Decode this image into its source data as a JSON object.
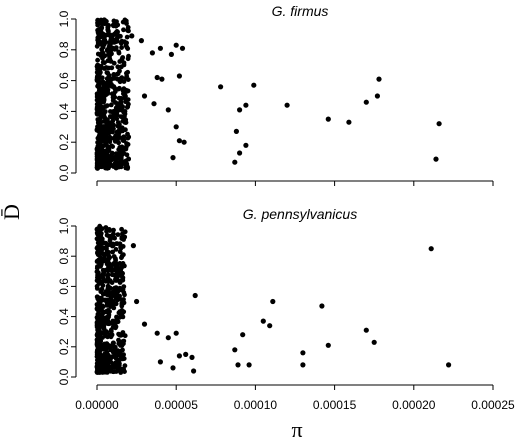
{
  "chart_data": [
    {
      "type": "scatter",
      "title": "G. firmus",
      "xlabel": "π",
      "ylabel": "D̄",
      "xlim": [
        0,
        0.00025
      ],
      "ylim": [
        0,
        1.0
      ],
      "y_ticks": [
        "0.0",
        "0.2",
        "0.4",
        "0.6",
        "0.8",
        "1.0"
      ],
      "labeled_points": [
        {
          "x": 8e-06,
          "y": 0.83
        },
        {
          "x": 2.2e-05,
          "y": 0.89
        },
        {
          "x": 2.8e-05,
          "y": 0.86
        },
        {
          "x": 3.5e-05,
          "y": 0.78
        },
        {
          "x": 4e-05,
          "y": 0.81
        },
        {
          "x": 4.7e-05,
          "y": 0.77
        },
        {
          "x": 5e-05,
          "y": 0.83
        },
        {
          "x": 5.4e-05,
          "y": 0.81
        },
        {
          "x": 3.8e-05,
          "y": 0.62
        },
        {
          "x": 4.1e-05,
          "y": 0.61
        },
        {
          "x": 5.2e-05,
          "y": 0.63
        },
        {
          "x": 3e-05,
          "y": 0.5
        },
        {
          "x": 3.6e-05,
          "y": 0.45
        },
        {
          "x": 4.5e-05,
          "y": 0.41
        },
        {
          "x": 5e-05,
          "y": 0.3
        },
        {
          "x": 5.2e-05,
          "y": 0.21
        },
        {
          "x": 5.5e-05,
          "y": 0.2
        },
        {
          "x": 4.8e-05,
          "y": 0.1
        },
        {
          "x": 7.8e-05,
          "y": 0.56
        },
        {
          "x": 8.8e-05,
          "y": 0.27
        },
        {
          "x": 8.7e-05,
          "y": 0.07
        },
        {
          "x": 9e-05,
          "y": 0.41
        },
        {
          "x": 9e-05,
          "y": 0.13
        },
        {
          "x": 9.4e-05,
          "y": 0.44
        },
        {
          "x": 9.4e-05,
          "y": 0.18
        },
        {
          "x": 9.9e-05,
          "y": 0.57
        },
        {
          "x": 0.00012,
          "y": 0.44
        },
        {
          "x": 0.000146,
          "y": 0.35
        },
        {
          "x": 0.000159,
          "y": 0.33
        },
        {
          "x": 0.00017,
          "y": 0.46
        },
        {
          "x": 0.000177,
          "y": 0.5
        },
        {
          "x": 0.000178,
          "y": 0.61
        },
        {
          "x": 0.000214,
          "y": 0.09
        },
        {
          "x": 0.000216,
          "y": 0.32
        }
      ],
      "dense_cluster": {
        "n": 620,
        "x_range": [
          0,
          2e-05
        ],
        "y_range": [
          0.03,
          1.0
        ],
        "seed": 11
      }
    },
    {
      "type": "scatter",
      "title": "G. pennsylvanicus",
      "xlabel": "π",
      "ylabel": "D̄",
      "xlim": [
        0,
        0.00025
      ],
      "ylim": [
        0,
        1.0
      ],
      "x_ticks": [
        "0.00000",
        "0.00005",
        "0.00010",
        "0.00015",
        "0.00020",
        "0.00025"
      ],
      "y_ticks": [
        "0.0",
        "0.2",
        "0.4",
        "0.6",
        "0.8",
        "1.0"
      ],
      "labeled_points": [
        {
          "x": 8e-06,
          "y": 0.93
        },
        {
          "x": 1.5e-05,
          "y": 0.86
        },
        {
          "x": 2.3e-05,
          "y": 0.87
        },
        {
          "x": 1.2e-05,
          "y": 0.72
        },
        {
          "x": 2.5e-05,
          "y": 0.5
        },
        {
          "x": 3e-05,
          "y": 0.35
        },
        {
          "x": 3.8e-05,
          "y": 0.29
        },
        {
          "x": 4.5e-05,
          "y": 0.26
        },
        {
          "x": 5e-05,
          "y": 0.29
        },
        {
          "x": 5.2e-05,
          "y": 0.14
        },
        {
          "x": 5.6e-05,
          "y": 0.15
        },
        {
          "x": 6e-05,
          "y": 0.13
        },
        {
          "x": 6.2e-05,
          "y": 0.54
        },
        {
          "x": 6.1e-05,
          "y": 0.04
        },
        {
          "x": 4.8e-05,
          "y": 0.06
        },
        {
          "x": 4e-05,
          "y": 0.1
        },
        {
          "x": 8.7e-05,
          "y": 0.18
        },
        {
          "x": 8.9e-05,
          "y": 0.08
        },
        {
          "x": 9.2e-05,
          "y": 0.28
        },
        {
          "x": 9.6e-05,
          "y": 0.08
        },
        {
          "x": 0.000105,
          "y": 0.37
        },
        {
          "x": 0.000109,
          "y": 0.34
        },
        {
          "x": 0.000111,
          "y": 0.5
        },
        {
          "x": 0.00013,
          "y": 0.16
        },
        {
          "x": 0.00013,
          "y": 0.08
        },
        {
          "x": 0.000142,
          "y": 0.47
        },
        {
          "x": 0.000146,
          "y": 0.21
        },
        {
          "x": 0.00017,
          "y": 0.31
        },
        {
          "x": 0.000175,
          "y": 0.23
        },
        {
          "x": 0.000211,
          "y": 0.85
        },
        {
          "x": 0.000222,
          "y": 0.08
        }
      ],
      "dense_cluster": {
        "n": 620,
        "x_range": [
          0,
          1.8e-05
        ],
        "y_range": [
          0.03,
          1.0
        ],
        "seed": 29
      }
    }
  ]
}
